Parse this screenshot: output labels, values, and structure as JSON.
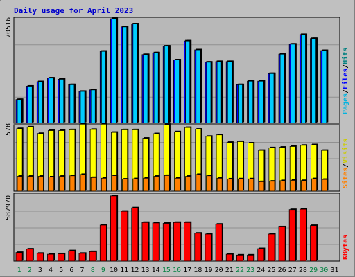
{
  "chart_data": {
    "type": "bar",
    "title": "Daily usage for April 2023",
    "categories": [
      "1",
      "2",
      "3",
      "4",
      "5",
      "6",
      "7",
      "8",
      "9",
      "10",
      "11",
      "12",
      "13",
      "14",
      "15",
      "16",
      "17",
      "18",
      "19",
      "20",
      "21",
      "22",
      "23",
      "24",
      "25",
      "26",
      "27",
      "28",
      "29",
      "30",
      "31"
    ],
    "weekend_days": [
      "1",
      "2",
      "8",
      "9",
      "15",
      "16",
      "22",
      "23",
      "29",
      "30"
    ],
    "colors": {
      "hits": "#00ccff",
      "files": "#0000ff",
      "pages": "#00b4e0",
      "visits": "#ffff00",
      "sites": "#ff8000",
      "kbytes": "#ff0000",
      "weekday_label": "#000000",
      "weekend_label": "#008040"
    },
    "panels": [
      {
        "id": "hits",
        "ytick": "70516",
        "ylim": [
          0,
          70516
        ],
        "series": [
          {
            "name": "Hits",
            "values": [
              16000,
              25000,
              28000,
              30500,
              29700,
              26000,
              21500,
              22500,
              48500,
              70500,
              65000,
              67000,
              46300,
              47500,
              52000,
              42700,
              55500,
              49500,
              41200,
              41600,
              41600,
              26000,
              28400,
              28400,
              33500,
              46600,
              53300,
              59800,
              57100,
              49000,
              0
            ]
          },
          {
            "name": "Files",
            "values": [
              16000,
              25000,
              28000,
              30500,
              29700,
              26000,
              21500,
              22500,
              48500,
              70500,
              65000,
              67000,
              46300,
              47500,
              52000,
              42700,
              55500,
              49500,
              41200,
              41600,
              41600,
              26000,
              28400,
              28400,
              33500,
              46600,
              53300,
              59800,
              57100,
              49000,
              0
            ]
          },
          {
            "name": "Pages",
            "values": [
              0,
              0,
              0,
              0,
              0,
              0,
              0,
              0,
              0,
              0,
              0,
              0,
              0,
              0,
              0,
              0,
              0,
              0,
              0,
              0,
              0,
              0,
              0,
              0,
              0,
              0,
              0,
              0,
              0,
              0,
              0
            ]
          }
        ],
        "right_labels": [
          {
            "text": "Pages",
            "color": "#00b4e0"
          },
          {
            "text": "/",
            "color": "#000000"
          },
          {
            "text": "Files",
            "color": "#0000ff"
          },
          {
            "text": "/",
            "color": "#000000"
          },
          {
            "text": "Hits",
            "color": "#008080"
          }
        ]
      },
      {
        "id": "visits",
        "ytick": "578",
        "ylim": [
          0,
          578
        ],
        "series": [
          {
            "name": "Visits",
            "values": [
              555,
              570,
              512,
              538,
              538,
              545,
              595,
              548,
              595,
              522,
              545,
              545,
              470,
              510,
              590,
              527,
              565,
              550,
              487,
              500,
              433,
              440,
              427,
              362,
              385,
              390,
              397,
              407,
              412,
              362,
              0
            ]
          },
          {
            "name": "Sites",
            "values": [
              132,
              132,
              132,
              126,
              132,
              137,
              148,
              121,
              115,
              138,
              107,
              110,
              115,
              132,
              139,
              115,
              132,
              148,
              137,
              115,
              108,
              109,
              109,
              84,
              88,
              93,
              96,
              94,
              110,
              104,
              0
            ]
          }
        ],
        "right_labels": [
          {
            "text": "Sites",
            "color": "#ff8000"
          },
          {
            "text": "/",
            "color": "#000000"
          },
          {
            "text": "Visits",
            "color": "#cccc00"
          }
        ]
      },
      {
        "id": "kbytes",
        "ytick": "587970",
        "ylim": [
          0,
          775000
        ],
        "series": [
          {
            "name": "KBytes",
            "values": [
              100000,
              140000,
              90000,
              80000,
              85000,
              120000,
              90000,
              110000,
              420000,
              760000,
              580000,
              620000,
              450000,
              445000,
              440000,
              450000,
              450000,
              325000,
              315000,
              430000,
              80000,
              70000,
              70000,
              145000,
              315000,
              400000,
              600000,
              605000,
              415000,
              0,
              0
            ]
          }
        ],
        "right_labels": [
          {
            "text": "KBytes",
            "color": "#ff0000"
          }
        ]
      }
    ]
  }
}
